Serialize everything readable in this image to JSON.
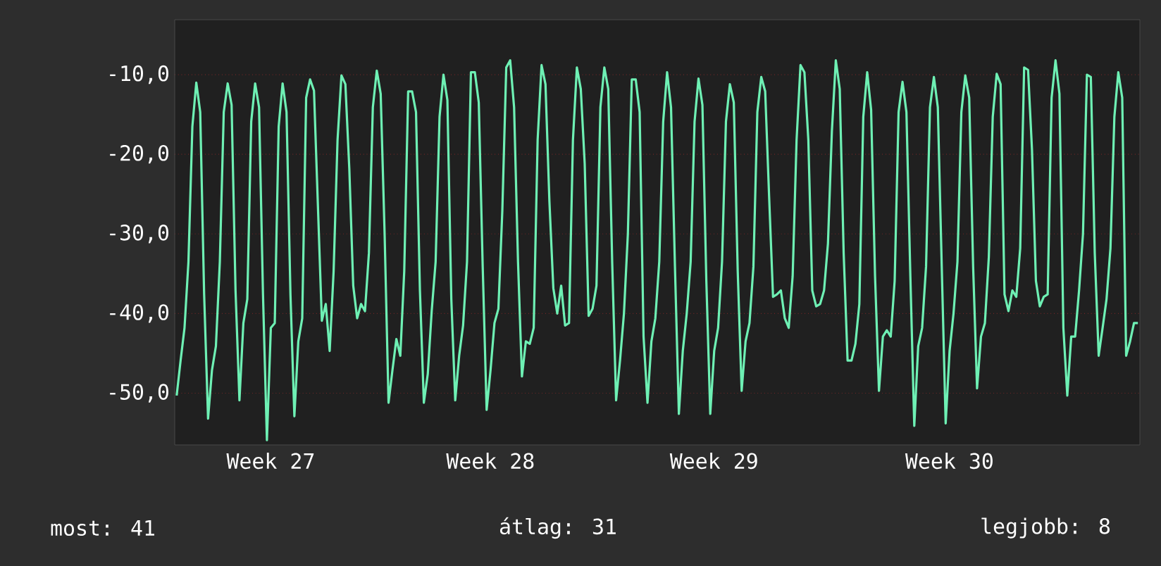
{
  "chart_data": {
    "type": "line",
    "categories": [
      null,
      null,
      null,
      null,
      null,
      null,
      null,
      null,
      null,
      null,
      null,
      null,
      null,
      null,
      null,
      null,
      null,
      null,
      null,
      null,
      null,
      null,
      null,
      null,
      "Week 27",
      null,
      null,
      null,
      null,
      null,
      null,
      null,
      null,
      null,
      null,
      null,
      null,
      null,
      null,
      null,
      null,
      null,
      null,
      null,
      null,
      null,
      null,
      null,
      null,
      null,
      null,
      null,
      null,
      null,
      null,
      null,
      null,
      null,
      null,
      null,
      null,
      null,
      null,
      null,
      null,
      null,
      null,
      null,
      null,
      null,
      null,
      null,
      null,
      null,
      null,
      null,
      null,
      null,
      null,
      null,
      "Week 28",
      null,
      null,
      null,
      null,
      null,
      null,
      null,
      null,
      null,
      null,
      null,
      null,
      null,
      null,
      null,
      null,
      null,
      null,
      null,
      null,
      null,
      null,
      null,
      null,
      null,
      null,
      null,
      null,
      null,
      null,
      null,
      null,
      null,
      null,
      null,
      null,
      null,
      null,
      null,
      null,
      null,
      null,
      null,
      null,
      null,
      null,
      null,
      null,
      null,
      null,
      null,
      null,
      null,
      null,
      null,
      null,
      "Week 29",
      null,
      null,
      null,
      null,
      null,
      null,
      null,
      null,
      null,
      null,
      null,
      null,
      null,
      null,
      null,
      null,
      null,
      null,
      null,
      null,
      null,
      null,
      null,
      null,
      null,
      null,
      null,
      null,
      null,
      null,
      null,
      null,
      null,
      null,
      null,
      null,
      null,
      null,
      null,
      null,
      null,
      null,
      null,
      null,
      null,
      null,
      null,
      null,
      null,
      null,
      null,
      null,
      null,
      null,
      null,
      null,
      null,
      null,
      null,
      "Week 30",
      null,
      null,
      null,
      null,
      null,
      null,
      null,
      null,
      null,
      null,
      null,
      null,
      null,
      null,
      null,
      null,
      null,
      null,
      null,
      null,
      null,
      null,
      null,
      null,
      null,
      null,
      null,
      null,
      null,
      null,
      null,
      null,
      null,
      null,
      null,
      null,
      null,
      null,
      null,
      null,
      null,
      null,
      null,
      null,
      null,
      null,
      null,
      null
    ],
    "series": [
      {
        "color": "#6ef0b4",
        "values": [
          -50.3,
          -45.9,
          -41.8,
          -33.5,
          -16.5,
          -11,
          -14.7,
          -37.6,
          -53.2,
          -47.1,
          -44.1,
          -33.5,
          -14.7,
          -11.1,
          -13.8,
          -37.1,
          -50.9,
          -41.2,
          -38.2,
          -15.9,
          -11.1,
          -14.1,
          -37.6,
          -55.9,
          -41.8,
          -41.2,
          -16.5,
          -11.1,
          -14.7,
          -37.6,
          -52.9,
          -43.5,
          -40.6,
          -12.9,
          -10.6,
          -12,
          -26.5,
          -40.9,
          -38.8,
          -44.7,
          -34.7,
          -18.2,
          -10.1,
          -11.2,
          -21.8,
          -36.5,
          -40.6,
          -38.8,
          -39.7,
          -32.4,
          -14.1,
          -9.5,
          -12.4,
          -30,
          -51.2,
          -47.1,
          -43.2,
          -45.3,
          -34.7,
          -12.1,
          -12.1,
          -14.7,
          -37.1,
          -51.2,
          -47.6,
          -39.7,
          -33.5,
          -15.3,
          -10,
          -13.2,
          -38.2,
          -50.9,
          -45.3,
          -41.5,
          -33.5,
          -9.7,
          -9.7,
          -13.5,
          -34.1,
          -52.1,
          -47.1,
          -41.2,
          -39.4,
          -27.1,
          -9.1,
          -8.2,
          -14.1,
          -33.5,
          -47.9,
          -43.5,
          -43.8,
          -41.8,
          -18.2,
          -8.8,
          -11.2,
          -25.9,
          -36.8,
          -40,
          -36.5,
          -41.5,
          -41.2,
          -18.2,
          -9.1,
          -11.8,
          -21.2,
          -40.3,
          -39.4,
          -36.5,
          -14.1,
          -9.1,
          -11.8,
          -33.5,
          -50.9,
          -45.9,
          -40,
          -30,
          -10.6,
          -10.6,
          -14.7,
          -42.9,
          -51.2,
          -43.5,
          -40.6,
          -33.5,
          -15.9,
          -9.7,
          -14.1,
          -34.1,
          -52.6,
          -44.7,
          -40,
          -33.5,
          -15.9,
          -10.5,
          -13.8,
          -35.9,
          -52.6,
          -44.7,
          -41.8,
          -33.5,
          -15.9,
          -11.2,
          -13.5,
          -34.7,
          -49.7,
          -43.5,
          -41.2,
          -34.1,
          -14.7,
          -10.3,
          -12.1,
          -25.3,
          -37.9,
          -37.6,
          -37.1,
          -40.6,
          -41.8,
          -35.3,
          -18.2,
          -8.8,
          -9.7,
          -18.2,
          -37.1,
          -39.1,
          -38.8,
          -37.1,
          -31.2,
          -17.1,
          -8.2,
          -11.8,
          -32.4,
          -45.9,
          -45.9,
          -43.8,
          -38.8,
          -15.3,
          -9.7,
          -14.4,
          -35.3,
          -49.7,
          -42.9,
          -42.1,
          -42.9,
          -35.9,
          -14.7,
          -10.9,
          -14.7,
          -35.3,
          -54.1,
          -44.1,
          -41.8,
          -34.1,
          -14.1,
          -10.3,
          -14.1,
          -34.1,
          -53.8,
          -44.7,
          -40,
          -33.5,
          -14.7,
          -10.1,
          -12.9,
          -34.1,
          -49.4,
          -42.9,
          -41.2,
          -32.9,
          -15.3,
          -9.9,
          -11.2,
          -37.6,
          -39.7,
          -37.1,
          -37.9,
          -31.8,
          -9.1,
          -9.4,
          -19.4,
          -35.9,
          -39.1,
          -37.9,
          -37.6,
          -12.9,
          -8.2,
          -12.4,
          -41.8,
          -50.3,
          -42.9,
          -42.9,
          -37.1,
          -30,
          -10,
          -10.3,
          -32.4,
          -45.3,
          -41.8,
          -38.2,
          -31.8,
          -15.3,
          -9.7,
          -12.9,
          -45.3,
          -43.5,
          -41.2,
          -41.2
        ]
      }
    ],
    "ylim": [
      -56.5,
      -3.1
    ],
    "yticks": [
      {
        "value": -50,
        "label": "-50,0"
      },
      {
        "value": -40,
        "label": "-40,0"
      },
      {
        "value": -30,
        "label": "-30,0"
      },
      {
        "value": -20,
        "label": "-20,0"
      },
      {
        "value": -10,
        "label": "-10,0"
      }
    ],
    "grid": "y",
    "annotations": [
      "most: 41",
      "átlag: 31",
      "legjobb: 8"
    ]
  }
}
